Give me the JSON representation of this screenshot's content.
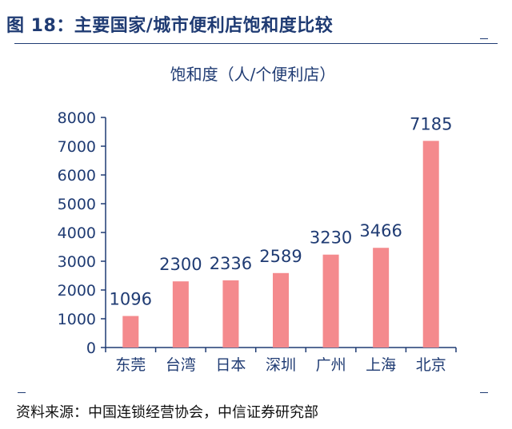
{
  "header": {
    "title": "图 18：主要国家/城市便利店饱和度比较"
  },
  "footer": {
    "source": "资料来源：中国连锁经营协会，中信证券研究部"
  },
  "colors": {
    "bar": "#f48a8d",
    "axis": "#1f3b73",
    "accent": "#1f3b73"
  },
  "chart_data": {
    "type": "bar",
    "title": "饱和度（人/个便利店）",
    "xlabel": "",
    "ylabel": "",
    "categories": [
      "东莞",
      "台湾",
      "日本",
      "深圳",
      "广州",
      "上海",
      "北京"
    ],
    "values": [
      1096,
      2300,
      2336,
      2589,
      3230,
      3466,
      7185
    ],
    "ylim": [
      0,
      8000
    ],
    "yticks": [
      0,
      1000,
      2000,
      3000,
      4000,
      5000,
      6000,
      7000,
      8000
    ],
    "grid": false,
    "data_labels": true
  }
}
